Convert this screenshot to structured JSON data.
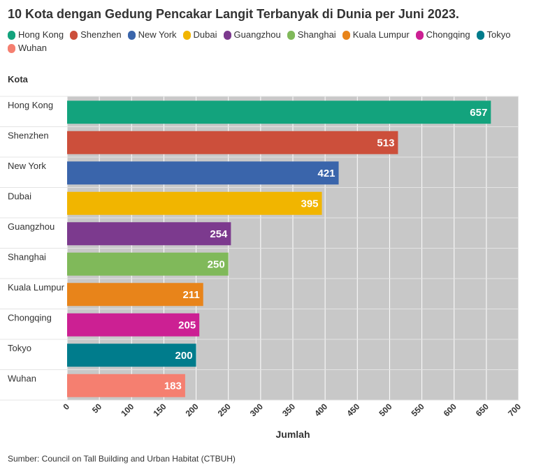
{
  "chart_data": {
    "type": "bar",
    "orientation": "horizontal",
    "title": "10 Kota dengan Gedung Pencakar Langit Terbanyak di Dunia per Juni 2023.",
    "ylabel": "Kota",
    "xlabel": "Jumlah",
    "source": "Sumber: Council on Tall Building and Urban Habitat (CTBUH)",
    "categories": [
      "Hong Kong",
      "Shenzhen",
      "New York",
      "Dubai",
      "Guangzhou",
      "Shanghai",
      "Kuala Lumpur",
      "Chongqing",
      "Tokyo",
      "Wuhan"
    ],
    "values": [
      657,
      513,
      421,
      395,
      254,
      250,
      211,
      205,
      200,
      183
    ],
    "colors": [
      "#13a37d",
      "#cc4f3b",
      "#3a65ab",
      "#f1b500",
      "#7c3a8e",
      "#80b95a",
      "#e8841a",
      "#cc2093",
      "#007c8c",
      "#f57f70"
    ],
    "legend": [
      "Hong Kong",
      "Shenzhen",
      "New York",
      "Dubai",
      "Guangzhou",
      "Shanghai",
      "Kuala Lumpur",
      "Chongqing",
      "Tokyo",
      "Wuhan"
    ],
    "legend_position": "top",
    "xlim": [
      0,
      700
    ],
    "xticks": [
      0,
      50,
      100,
      150,
      200,
      250,
      300,
      350,
      400,
      450,
      500,
      550,
      600,
      650,
      700
    ],
    "grid": true,
    "plot_background": "#c8c8c8"
  }
}
